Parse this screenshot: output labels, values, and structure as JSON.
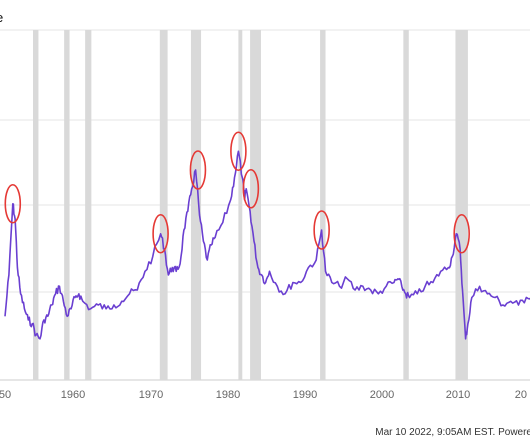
{
  "title": "e",
  "footer": "Mar 10 2022, 9:05AM EST. Powere",
  "colors": {
    "line": "#6a3fd1",
    "recession": "#d9d9d9",
    "highlight": "#e53935",
    "grid": "#e6e6e6"
  },
  "chart_data": {
    "type": "line",
    "title": "e",
    "xlabel": "",
    "ylabel": "",
    "xlim": [
      1950,
      2023
    ],
    "ylim": [
      0,
      4
    ],
    "grid": true,
    "x_ticks": [
      "50",
      "1960",
      "1970",
      "1980",
      "1990",
      "2000",
      "2010",
      "20"
    ],
    "recessions": [
      [
        1953.6,
        1954.3
      ],
      [
        1957.6,
        1958.3
      ],
      [
        1960.3,
        1961.1
      ],
      [
        1969.9,
        1970.9
      ],
      [
        1973.9,
        1975.2
      ],
      [
        1980.0,
        1980.5
      ],
      [
        1981.5,
        1982.9
      ],
      [
        1990.5,
        1991.2
      ],
      [
        2001.2,
        2001.9
      ],
      [
        2007.9,
        2009.5
      ]
    ],
    "highlighted_peaks": [
      {
        "x": 1951.0,
        "y": 2.35
      },
      {
        "x": 1970.0,
        "y": 1.95
      },
      {
        "x": 1974.8,
        "y": 2.8
      },
      {
        "x": 1980.0,
        "y": 3.05
      },
      {
        "x": 1981.6,
        "y": 2.55
      },
      {
        "x": 1990.7,
        "y": 2.0
      },
      {
        "x": 2008.7,
        "y": 1.95
      }
    ],
    "series": [
      {
        "x": [
          1950.0,
          1950.5,
          1951.0,
          1951.3,
          1951.6,
          1952.0,
          1952.5,
          1953.0,
          1953.5,
          1954.0,
          1954.5,
          1955.0,
          1955.5,
          1956.0,
          1956.5,
          1957.0,
          1957.5,
          1958.0,
          1958.5,
          1959.0,
          1959.5,
          1960.0,
          1961.0,
          1962.0,
          1963.0,
          1964.0,
          1965.0,
          1966.0,
          1967.0,
          1968.0,
          1969.0,
          1970.0,
          1970.5,
          1971.0,
          1971.5,
          1972.0,
          1972.5,
          1973.0,
          1973.5,
          1974.0,
          1974.5,
          1975.0,
          1975.5,
          1976.0,
          1976.5,
          1977.0,
          1978.0,
          1979.0,
          1979.5,
          1980.0,
          1980.5,
          1980.8,
          1981.0,
          1981.5,
          1982.0,
          1982.5,
          1983.0,
          1983.5,
          1984.0,
          1985.0,
          1986.0,
          1987.0,
          1988.0,
          1989.0,
          1990.0,
          1990.7,
          1991.2,
          1992.0,
          1993.0,
          1994.0,
          1995.0,
          1996.0,
          1997.0,
          1998.0,
          1999.0,
          2000.0,
          2000.5,
          2001.0,
          2001.5,
          2002.0,
          2003.0,
          2004.0,
          2005.0,
          2006.0,
          2007.0,
          2007.5,
          2008.0,
          2008.5,
          2008.8,
          2009.2,
          2009.5,
          2010.0,
          2011.0,
          2012.0,
          2013.0,
          2014.0,
          2015.0,
          2016.0,
          2017.0,
          2018.0,
          2019.0,
          2020.0,
          2020.5,
          2021.0,
          2022.0,
          2023.0
        ],
        "y": [
          0.85,
          1.4,
          2.35,
          2.15,
          1.5,
          1.15,
          0.95,
          0.8,
          0.75,
          0.6,
          0.55,
          0.8,
          0.85,
          1.0,
          1.15,
          1.25,
          1.05,
          0.85,
          0.95,
          1.1,
          1.15,
          1.05,
          0.95,
          1.0,
          0.95,
          1.0,
          1.05,
          1.15,
          1.2,
          1.45,
          1.65,
          1.95,
          1.75,
          1.4,
          1.5,
          1.45,
          1.55,
          2.0,
          2.25,
          2.55,
          2.8,
          2.2,
          1.85,
          1.6,
          1.8,
          1.9,
          2.1,
          2.4,
          2.7,
          3.05,
          2.7,
          2.4,
          2.55,
          2.25,
          1.85,
          1.5,
          1.4,
          1.3,
          1.45,
          1.25,
          1.15,
          1.3,
          1.3,
          1.5,
          1.6,
          2.0,
          1.45,
          1.3,
          1.25,
          1.35,
          1.2,
          1.25,
          1.2,
          1.15,
          1.25,
          1.3,
          1.35,
          1.25,
          1.15,
          1.1,
          1.15,
          1.25,
          1.3,
          1.45,
          1.5,
          1.65,
          1.95,
          1.75,
          1.2,
          0.55,
          0.75,
          1.1,
          1.25,
          1.15,
          1.1,
          1.0,
          1.05,
          1.0,
          1.1,
          1.15,
          1.2,
          1.1,
          1.2,
          1.25,
          1.05,
          1.1
        ]
      }
    ]
  }
}
